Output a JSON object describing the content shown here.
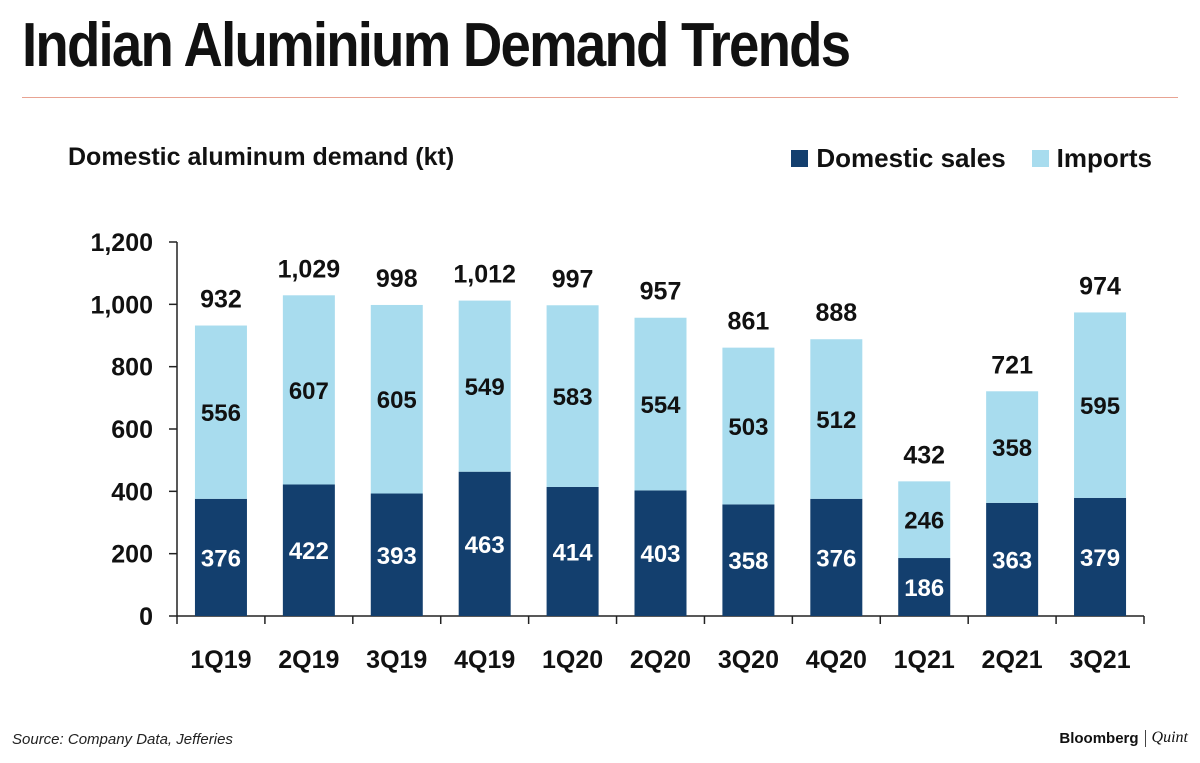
{
  "header": {
    "title": "Indian Aluminium Demand Trends",
    "subtitle": "Domestic aluminum demand (kt)"
  },
  "legend": {
    "domestic_label": "Domestic sales",
    "imports_label": "Imports"
  },
  "colors": {
    "domestic": "#133f6e",
    "imports": "#a8dcee",
    "domestic_text": "#ffffff",
    "imports_text": "#111111",
    "axis": "#222222",
    "title_rule": "#e8a392"
  },
  "footer": {
    "source": "Source: Company Data, Jefferies",
    "brand_primary": "Bloomberg",
    "brand_secondary": "Quint"
  },
  "chart_data": {
    "type": "bar",
    "stacked": true,
    "title": "Indian Aluminium Demand Trends",
    "subtitle": "Domestic aluminum demand (kt)",
    "xlabel": "",
    "ylabel": "",
    "ylim": [
      0,
      1200
    ],
    "yticks": [
      0,
      200,
      400,
      600,
      800,
      1000,
      1200
    ],
    "ytick_labels": [
      "0",
      "200",
      "400",
      "600",
      "800",
      "1,000",
      "1,200"
    ],
    "categories": [
      "1Q19",
      "2Q19",
      "3Q19",
      "4Q19",
      "1Q20",
      "2Q20",
      "3Q20",
      "4Q20",
      "1Q21",
      "2Q21",
      "3Q21"
    ],
    "series": [
      {
        "name": "Domestic sales",
        "values": [
          376,
          422,
          393,
          463,
          414,
          403,
          358,
          376,
          186,
          363,
          379
        ]
      },
      {
        "name": "Imports",
        "values": [
          556,
          607,
          605,
          549,
          583,
          554,
          503,
          512,
          246,
          358,
          595
        ]
      }
    ],
    "totals": [
      932,
      1029,
      998,
      1012,
      997,
      957,
      861,
      888,
      432,
      721,
      974
    ],
    "total_labels": [
      "932",
      "1,029",
      "998",
      "1,012",
      "997",
      "957",
      "861",
      "888",
      "432",
      "721",
      "974"
    ],
    "legend_position": "top-right",
    "grid": false
  }
}
